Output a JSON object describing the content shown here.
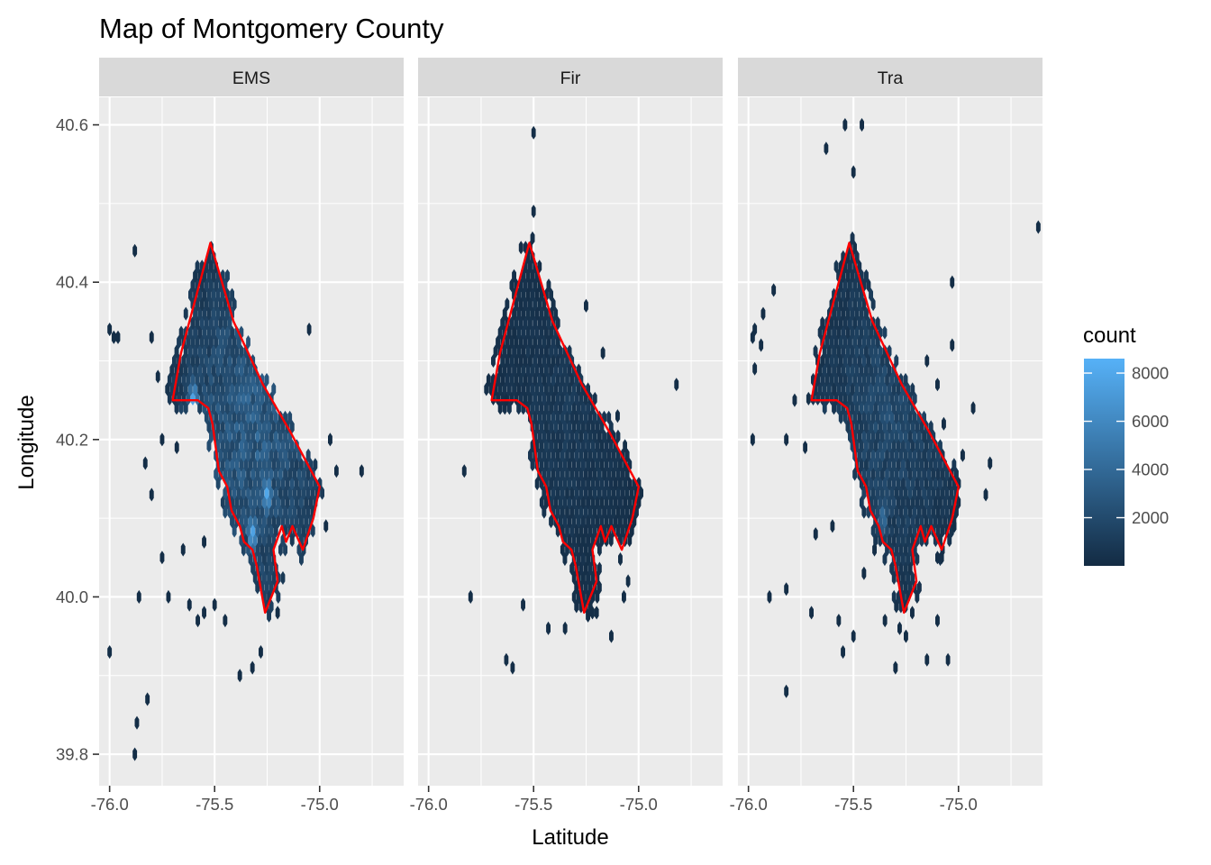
{
  "chart_data": {
    "type": "heatmap",
    "subtype": "hexbin-facet",
    "title": "Map of Montgomery County",
    "xlabel": "Latitude",
    "ylabel": "Longitude",
    "xlim": [
      -76.05,
      -74.6
    ],
    "ylim": [
      39.76,
      40.635
    ],
    "x_ticks": [
      -76.0,
      -75.5,
      -75.0
    ],
    "x_tick_labels": [
      "-76.0",
      "-75.5",
      "-75.0"
    ],
    "y_ticks": [
      39.8,
      40.0,
      40.2,
      40.4,
      40.6
    ],
    "y_tick_labels": [
      "39.8",
      "40.0",
      "40.2",
      "40.4",
      "40.6"
    ],
    "grid": true,
    "legend": {
      "title": "count",
      "position": "right",
      "type": "colorbar",
      "min": 1,
      "max": 8600,
      "breaks": [
        2000,
        4000,
        6000,
        8000
      ],
      "break_labels": [
        "2000",
        "4000",
        "6000",
        "8000"
      ],
      "low_color": "#132B43",
      "high_color": "#56B1F7"
    },
    "boundary_color": "#FF0000",
    "county_boundary": [
      [
        -75.52,
        40.45
      ],
      [
        -75.41,
        40.35
      ],
      [
        -75.27,
        40.27
      ],
      [
        -75.14,
        40.21
      ],
      [
        -75.0,
        40.14
      ],
      [
        -75.03,
        40.1
      ],
      [
        -75.08,
        40.06
      ],
      [
        -75.13,
        40.09
      ],
      [
        -75.16,
        40.07
      ],
      [
        -75.18,
        40.09
      ],
      [
        -75.22,
        40.06
      ],
      [
        -75.2,
        40.02
      ],
      [
        -75.26,
        39.98
      ],
      [
        -75.3,
        40.04
      ],
      [
        -75.32,
        40.06
      ],
      [
        -75.36,
        40.07
      ],
      [
        -75.38,
        40.09
      ],
      [
        -75.42,
        40.11
      ],
      [
        -75.44,
        40.14
      ],
      [
        -75.48,
        40.16
      ],
      [
        -75.51,
        40.22
      ],
      [
        -75.53,
        40.24
      ],
      [
        -75.58,
        40.25
      ],
      [
        -75.7,
        40.25
      ],
      [
        -75.66,
        40.31
      ],
      [
        -75.52,
        40.45
      ]
    ],
    "facets": [
      {
        "label": "EMS",
        "dense_core": {
          "lon_center": -75.33,
          "lat_center": 40.21,
          "max_count": 8600,
          "hotspots": [
            [
              -75.25,
              40.13
            ],
            [
              -75.32,
              40.08
            ],
            [
              -75.6,
              40.25
            ]
          ]
        },
        "outliers": [
          [
            -76.0,
            40.34
          ],
          [
            -75.98,
            40.33
          ],
          [
            -75.96,
            40.33
          ],
          [
            -75.88,
            40.44
          ],
          [
            -75.8,
            40.33
          ],
          [
            -75.77,
            40.28
          ],
          [
            -75.75,
            40.2
          ],
          [
            -75.68,
            40.19
          ],
          [
            -75.83,
            40.17
          ],
          [
            -75.8,
            40.13
          ],
          [
            -75.75,
            40.05
          ],
          [
            -75.65,
            40.06
          ],
          [
            -75.72,
            40.0
          ],
          [
            -75.55,
            40.07
          ],
          [
            -75.5,
            39.99
          ],
          [
            -75.45,
            39.97
          ],
          [
            -75.55,
            39.98
          ],
          [
            -75.62,
            39.99
          ],
          [
            -75.58,
            39.97
          ],
          [
            -75.38,
            39.9
          ],
          [
            -75.32,
            39.91
          ],
          [
            -75.28,
            39.93
          ],
          [
            -75.2,
            39.98
          ],
          [
            -75.05,
            40.34
          ],
          [
            -74.95,
            40.2
          ],
          [
            -74.92,
            40.16
          ],
          [
            -74.97,
            40.09
          ],
          [
            -74.8,
            40.16
          ],
          [
            -75.86,
            40.0
          ],
          [
            -76.0,
            39.93
          ],
          [
            -75.82,
            39.87
          ],
          [
            -75.87,
            39.84
          ],
          [
            -75.88,
            39.8
          ]
        ]
      },
      {
        "label": "Fir",
        "dense_core": {
          "lon_center": -75.36,
          "lat_center": 40.22,
          "max_count": 2500,
          "hotspots": []
        },
        "outliers": [
          [
            -75.5,
            40.59
          ],
          [
            -75.5,
            40.49
          ],
          [
            -75.63,
            40.25
          ],
          [
            -75.83,
            40.16
          ],
          [
            -75.8,
            40.0
          ],
          [
            -75.25,
            40.37
          ],
          [
            -75.17,
            40.31
          ],
          [
            -75.1,
            40.23
          ],
          [
            -74.82,
            40.27
          ],
          [
            -75.05,
            40.02
          ],
          [
            -75.07,
            40.0
          ],
          [
            -75.13,
            39.95
          ],
          [
            -75.2,
            39.98
          ],
          [
            -75.35,
            39.96
          ],
          [
            -75.43,
            39.96
          ],
          [
            -75.55,
            39.99
          ],
          [
            -75.63,
            39.92
          ],
          [
            -75.6,
            39.91
          ],
          [
            -75.22,
            39.98
          ]
        ]
      },
      {
        "label": "Tra",
        "dense_core": {
          "lon_center": -75.33,
          "lat_center": 40.23,
          "max_count": 5000,
          "hotspots": [
            [
              -75.36,
              40.1
            ]
          ]
        },
        "outliers": [
          [
            -75.54,
            40.6
          ],
          [
            -75.46,
            40.6
          ],
          [
            -75.63,
            40.57
          ],
          [
            -75.5,
            40.54
          ],
          [
            -74.62,
            40.47
          ],
          [
            -75.03,
            40.4
          ],
          [
            -75.88,
            40.39
          ],
          [
            -75.93,
            40.36
          ],
          [
            -75.97,
            40.34
          ],
          [
            -75.98,
            40.33
          ],
          [
            -75.94,
            40.32
          ],
          [
            -75.97,
            40.29
          ],
          [
            -75.15,
            40.3
          ],
          [
            -75.03,
            40.32
          ],
          [
            -75.1,
            40.27
          ],
          [
            -75.78,
            40.25
          ],
          [
            -75.98,
            40.2
          ],
          [
            -75.82,
            40.2
          ],
          [
            -75.73,
            40.19
          ],
          [
            -74.93,
            40.24
          ],
          [
            -75.07,
            40.22
          ],
          [
            -74.98,
            40.18
          ],
          [
            -75.0,
            40.12
          ],
          [
            -74.85,
            40.17
          ],
          [
            -74.87,
            40.13
          ],
          [
            -75.02,
            40.09
          ],
          [
            -75.08,
            40.05
          ],
          [
            -75.1,
            40.05
          ],
          [
            -75.6,
            40.09
          ],
          [
            -75.68,
            40.08
          ],
          [
            -75.82,
            40.01
          ],
          [
            -75.9,
            40.0
          ],
          [
            -75.7,
            39.98
          ],
          [
            -75.57,
            39.97
          ],
          [
            -75.55,
            39.93
          ],
          [
            -75.5,
            39.95
          ],
          [
            -75.35,
            39.97
          ],
          [
            -75.28,
            39.96
          ],
          [
            -75.22,
            39.98
          ],
          [
            -75.15,
            39.92
          ],
          [
            -75.1,
            39.97
          ],
          [
            -75.05,
            39.92
          ],
          [
            -75.25,
            39.95
          ],
          [
            -75.3,
            39.91
          ],
          [
            -75.82,
            39.88
          ],
          [
            -75.45,
            40.03
          ],
          [
            -75.4,
            40.06
          ]
        ]
      }
    ]
  }
}
